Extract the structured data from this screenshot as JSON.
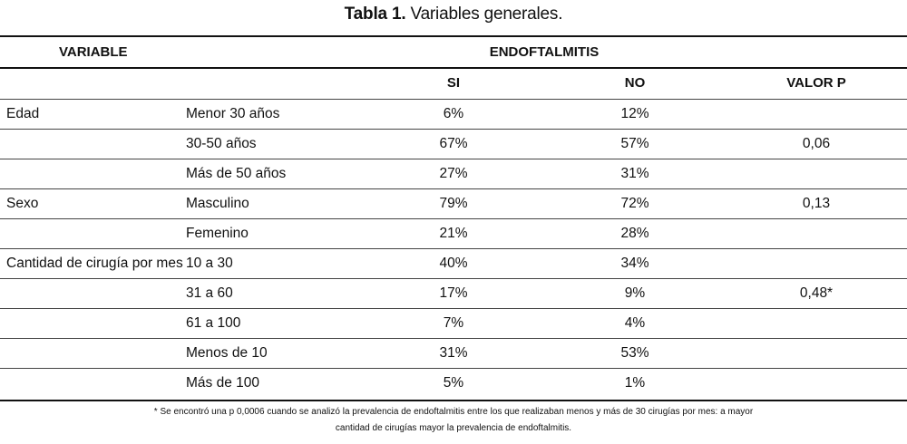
{
  "caption": {
    "label": "Tabla 1.",
    "text": " Variables generales."
  },
  "header": {
    "variable": "VARIABLE",
    "endoftalmitis": "ENDOFTALMITIS",
    "si": "SI",
    "no": "NO",
    "valor_p": "VALOR P"
  },
  "rows": [
    {
      "variable": "Edad",
      "sub": "Menor 30 años",
      "si": "6%",
      "no": "12%",
      "p": ""
    },
    {
      "variable": "",
      "sub": "30-50 años",
      "si": "67%",
      "no": "57%",
      "p": "0,06"
    },
    {
      "variable": "",
      "sub": "Más de 50 años",
      "si": "27%",
      "no": "31%",
      "p": ""
    },
    {
      "variable": "Sexo",
      "sub": "Masculino",
      "si": "79%",
      "no": "72%",
      "p": "0,13"
    },
    {
      "variable": "",
      "sub": "Femenino",
      "si": "21%",
      "no": "28%",
      "p": ""
    },
    {
      "variable": "Cantidad de cirugía por mes",
      "sub": "10 a 30",
      "si": "40%",
      "no": "34%",
      "p": ""
    },
    {
      "variable": "",
      "sub": "31 a 60",
      "si": "17%",
      "no": "9%",
      "p": "0,48*"
    },
    {
      "variable": "",
      "sub": "61 a 100",
      "si": "7%",
      "no": "4%",
      "p": ""
    },
    {
      "variable": "",
      "sub": "Menos de 10",
      "si": "31%",
      "no": "53%",
      "p": ""
    },
    {
      "variable": "",
      "sub": "Más de 100",
      "si": "5%",
      "no": "1%",
      "p": ""
    }
  ],
  "footnote": {
    "line1": "* Se encontró una p 0,0006 cuando se analizó la prevalencia de endoftalmitis entre los que realizaban menos y más de 30 cirugías por mes: a mayor",
    "line2": "cantidad de cirugías mayor la prevalencia de endoftalmitis."
  }
}
